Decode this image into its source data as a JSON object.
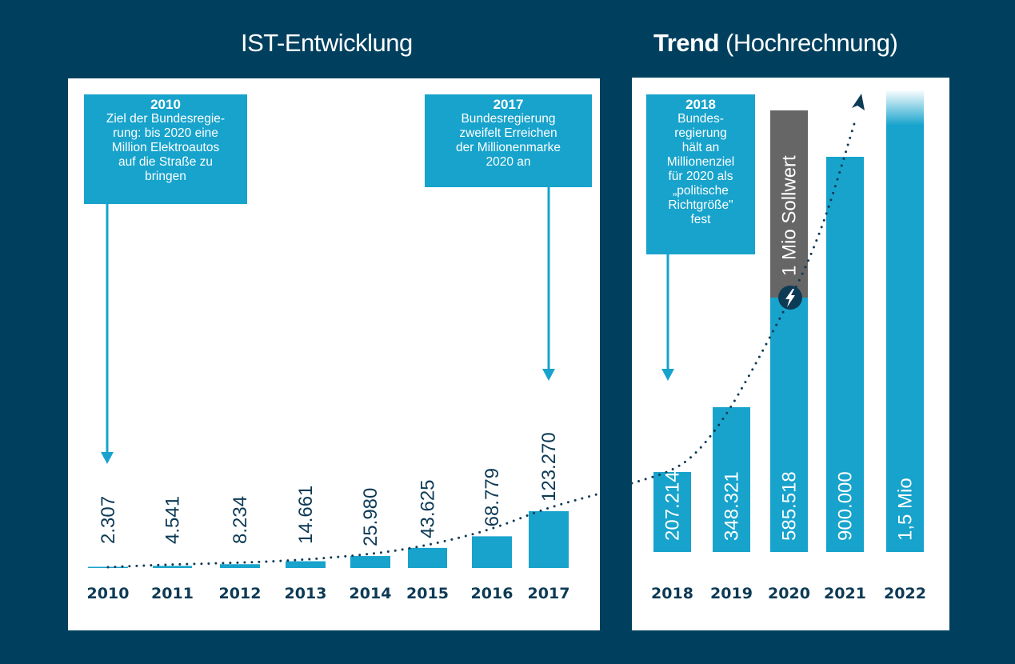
{
  "titles": {
    "left": "IST-Entwicklung",
    "right_bold": "Trend",
    "right_light": "(Hochrechnung)"
  },
  "colors": {
    "background": "#00405e",
    "bar": "#17a3cc",
    "target_bar": "#666666",
    "year_label": "#0d3a55",
    "trend_dots": "#0d3a55",
    "callout": "#17a3cc"
  },
  "callouts": [
    {
      "year": "2010",
      "text": "Ziel der Bundesregie-\nrung: bis 2020 eine\nMillion Elektroautos\nauf die Straße zu\nbringen",
      "points_to": "2010"
    },
    {
      "year": "2017",
      "text": "Bundesregierung\nzweifelt Erreichen\nder Millionenmarke\n2020 an",
      "points_to": "2017"
    },
    {
      "year": "2018",
      "text": "Bundes-\nregierung\nhält an\nMillionenziel\nfür 2020 als\n„politische\nRichtgröße\"\nfest",
      "points_to": "2018"
    }
  ],
  "chart_data": [
    {
      "type": "bar",
      "title": "IST-Entwicklung",
      "xlabel": "",
      "ylabel": "",
      "categories": [
        "2010",
        "2011",
        "2012",
        "2013",
        "2014",
        "2015",
        "2016",
        "2017"
      ],
      "values": [
        2307,
        4541,
        8234,
        14661,
        25980,
        43625,
        68779,
        123270
      ],
      "value_labels": [
        "2.307",
        "4.541",
        "8.234",
        "14.661",
        "25.980",
        "43.625",
        "68.779",
        "123.270"
      ],
      "label_position": "above-bar-rotated",
      "grid": false,
      "trendline": "dotted exponential"
    },
    {
      "type": "bar",
      "title": "Trend (Hochrechnung)",
      "xlabel": "",
      "ylabel": "",
      "categories": [
        "2018",
        "2019",
        "2020",
        "2021",
        "2022"
      ],
      "values": [
        207214,
        348321,
        585518,
        900000,
        1500000
      ],
      "value_labels": [
        "207.214",
        "348.321",
        "585.518",
        "900.000",
        "1,5 Mio"
      ],
      "label_position": "inside-bar-rotated",
      "grid": false,
      "target": {
        "year": "2020",
        "value": 1000000,
        "label": "1 Mio Sollwert",
        "icon": "lightning-bolt-icon"
      },
      "projected": [
        "2022"
      ],
      "trendline": "dotted exponential with arrowhead"
    }
  ]
}
